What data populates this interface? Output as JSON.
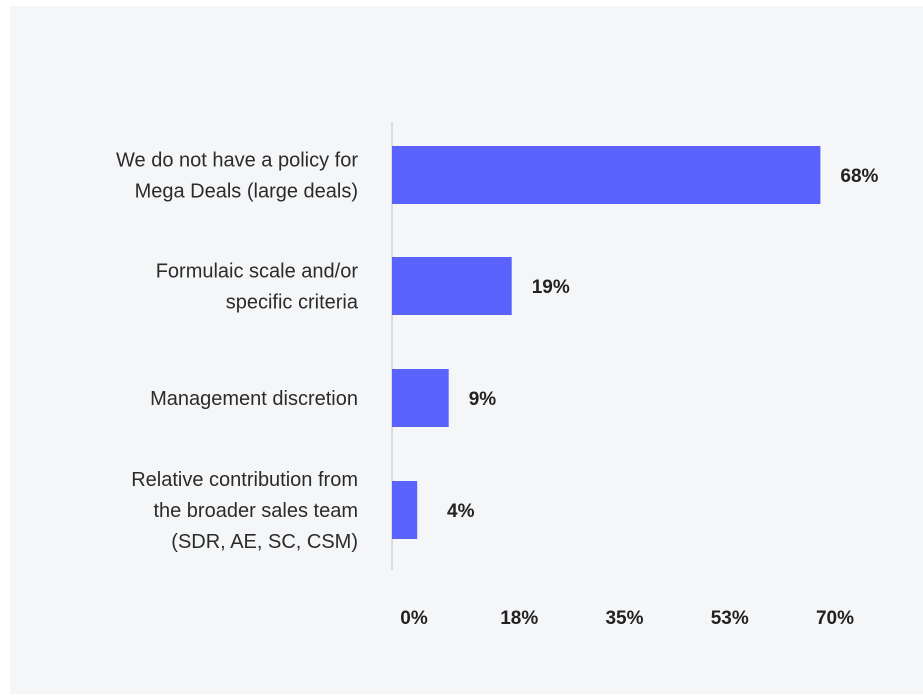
{
  "chart_data": {
    "type": "bar",
    "orientation": "horizontal",
    "categories": [
      [
        "We do not have a policy for",
        "Mega Deals (large deals)"
      ],
      [
        "Formulaic scale and/or",
        "specific criteria"
      ],
      [
        "Management discretion"
      ],
      [
        "Relative contribution from",
        "the broader sales team",
        "(SDR, AE, SC, CSM)"
      ]
    ],
    "values": [
      68,
      19,
      9,
      4
    ],
    "value_labels": [
      "68%",
      "19%",
      "9%",
      "4%"
    ],
    "x_ticks": [
      "0%",
      "18%",
      "35%",
      "53%",
      "70%"
    ],
    "xlim": [
      0,
      70
    ],
    "bar_color": "#5b63ff",
    "axis_color": "#cfd2d8",
    "grid": false,
    "legend": "none"
  }
}
